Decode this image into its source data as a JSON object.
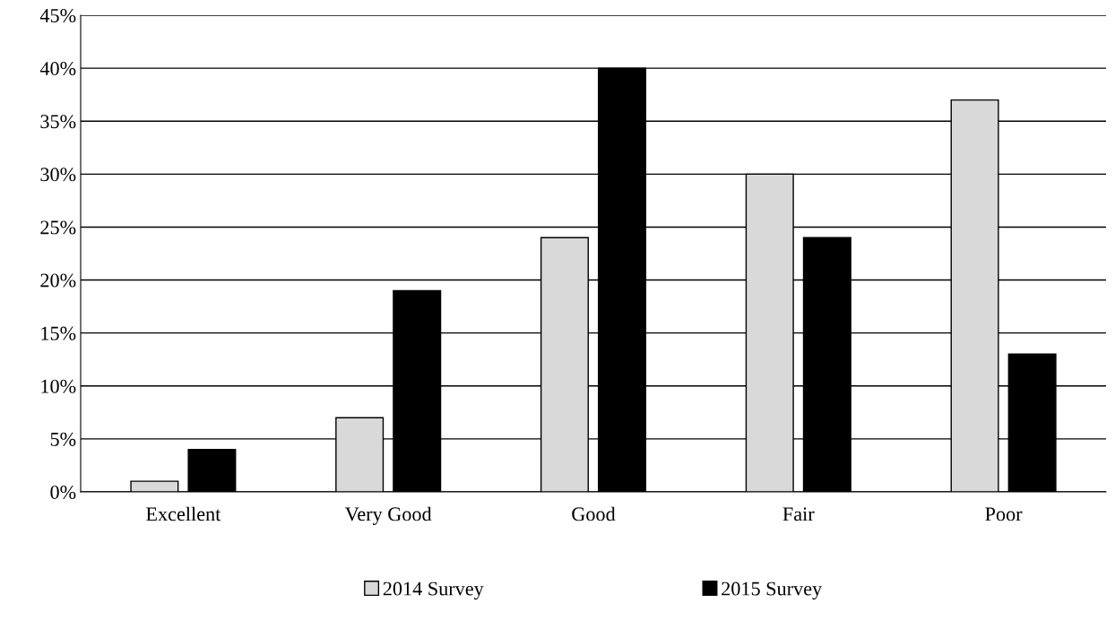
{
  "chart_data": {
    "type": "bar",
    "categories": [
      "Excellent",
      "Very Good",
      "Good",
      "Fair",
      "Poor"
    ],
    "series": [
      {
        "name": "2014 Survey",
        "color": "#d9d9d9",
        "values": [
          1,
          7,
          24,
          30,
          37
        ]
      },
      {
        "name": "2015 Survey",
        "color": "#000000",
        "values": [
          4,
          19,
          40,
          24,
          13
        ]
      }
    ],
    "ylim": [
      0,
      45
    ],
    "yticks": [
      {
        "value": 0,
        "label": "0%"
      },
      {
        "value": 5,
        "label": "5%"
      },
      {
        "value": 10,
        "label": "10%"
      },
      {
        "value": 15,
        "label": "15%"
      },
      {
        "value": 20,
        "label": "20%"
      },
      {
        "value": 25,
        "label": "25%"
      },
      {
        "value": 30,
        "label": "30%"
      },
      {
        "value": 35,
        "label": "35%"
      },
      {
        "value": 40,
        "label": "40%"
      },
      {
        "value": 45,
        "label": "45%"
      }
    ],
    "grid": "y",
    "legend": "bottom"
  }
}
